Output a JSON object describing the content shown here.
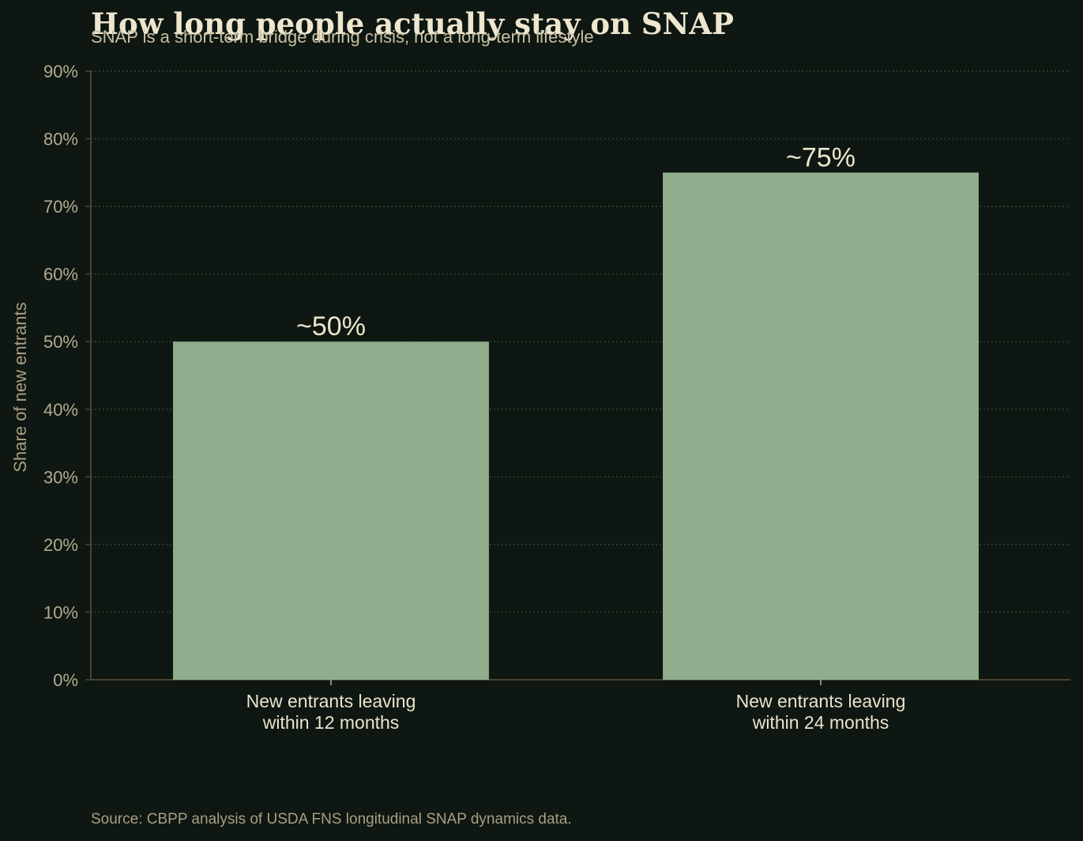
{
  "title": "How long people actually stay on SNAP",
  "subtitle": "SNAP is a short-term bridge during crisis, not a long-term lifestyle",
  "source": "Source: CBPP analysis of USDA FNS longitudinal SNAP dynamics data.",
  "colors": {
    "background": "#0e1711",
    "bar": "#8fad8c",
    "axis": "#4a4434",
    "grid": "#3d4a3d"
  },
  "chart_data": {
    "type": "bar",
    "categories": [
      [
        "New entrants leaving",
        "within 12 months"
      ],
      [
        "New entrants leaving",
        "within 24 months"
      ]
    ],
    "values": [
      50,
      75
    ],
    "data_labels": [
      "~50%",
      "~75%"
    ],
    "ylabel": "Share of new entrants",
    "ylim": [
      0,
      90
    ],
    "yticks": [
      0,
      10,
      20,
      30,
      40,
      50,
      60,
      70,
      80,
      90
    ],
    "ytick_labels": [
      "0%",
      "10%",
      "20%",
      "30%",
      "40%",
      "50%",
      "60%",
      "70%",
      "80%",
      "90%"
    ],
    "grid": true,
    "legend": "none"
  }
}
